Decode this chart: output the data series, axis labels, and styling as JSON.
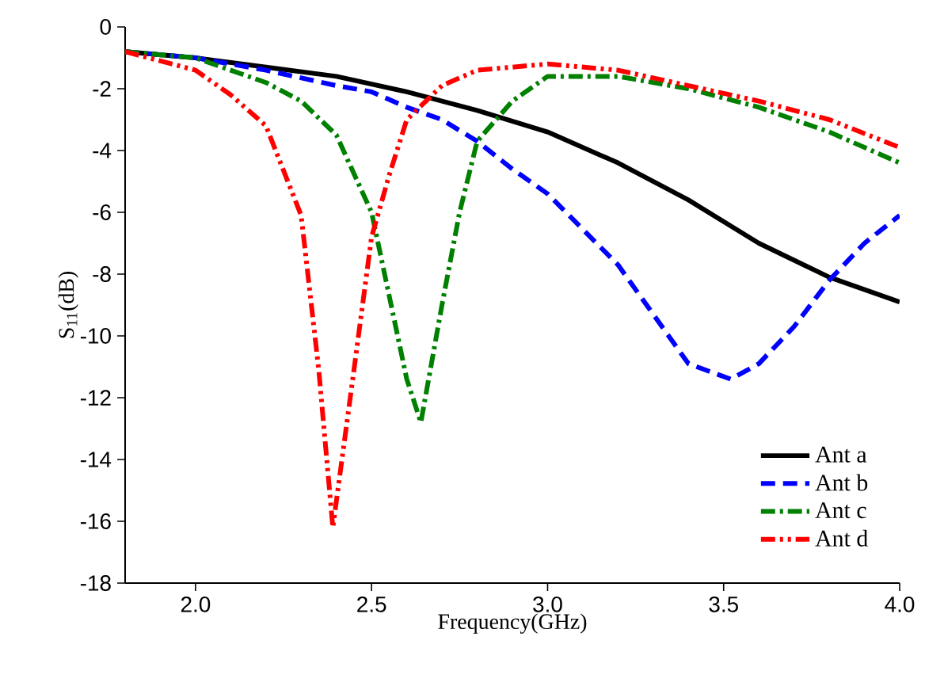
{
  "chart_data": {
    "type": "line",
    "xlabel": "Frequency(GHz)",
    "ylabel": "S$_{11}$(dB)",
    "xlim": [
      1.8,
      4.0
    ],
    "ylim": [
      -18,
      0
    ],
    "xticks": [
      {
        "value": 2.0,
        "label": "2.0"
      },
      {
        "value": 2.5,
        "label": "2.5"
      },
      {
        "value": 3.0,
        "label": "3.0"
      },
      {
        "value": 3.5,
        "label": "3.5"
      },
      {
        "value": 4.0,
        "label": "4.0"
      }
    ],
    "yticks": [
      -18,
      -16,
      -14,
      -12,
      -10,
      -8,
      -6,
      -4,
      -2,
      0
    ],
    "grid": false,
    "legend": "bottom right",
    "marker": "none",
    "series": [
      {
        "name": "Ant a",
        "color": "#000000",
        "line_style": "solid",
        "x": [
          1.8,
          2.0,
          2.2,
          2.4,
          2.6,
          2.8,
          3.0,
          3.2,
          3.4,
          3.5,
          3.6,
          3.8,
          4.0
        ],
        "values": [
          -0.8,
          -1.0,
          -1.3,
          -1.6,
          -2.1,
          -2.7,
          -3.4,
          -4.4,
          -5.6,
          -6.3,
          -7.0,
          -8.1,
          -8.9
        ]
      },
      {
        "name": "Ant b",
        "color": "#0000ff",
        "line_style": "dashed",
        "x": [
          1.8,
          2.0,
          2.2,
          2.4,
          2.5,
          2.6,
          2.7,
          2.8,
          2.9,
          3.0,
          3.2,
          3.4,
          3.52,
          3.6,
          3.7,
          3.8,
          3.9,
          4.0
        ],
        "values": [
          -0.8,
          -1.0,
          -1.4,
          -1.9,
          -2.1,
          -2.6,
          -3.0,
          -3.7,
          -4.6,
          -5.4,
          -7.7,
          -10.9,
          -11.4,
          -10.9,
          -9.7,
          -8.2,
          -7.0,
          -6.1
        ]
      },
      {
        "name": "Ant c",
        "color": "#008000",
        "line_style": "dashdot",
        "x": [
          1.8,
          2.0,
          2.2,
          2.3,
          2.4,
          2.5,
          2.55,
          2.6,
          2.64,
          2.7,
          2.75,
          2.8,
          2.9,
          3.0,
          3.2,
          3.4,
          3.6,
          3.8,
          4.0
        ],
        "values": [
          -0.8,
          -1.0,
          -1.8,
          -2.4,
          -3.5,
          -6.0,
          -8.7,
          -11.4,
          -12.8,
          -9.0,
          -6.0,
          -3.7,
          -2.4,
          -1.6,
          -1.6,
          -2.0,
          -2.6,
          -3.4,
          -4.4
        ]
      },
      {
        "name": "Ant d",
        "color": "#ff0000",
        "line_style": "dashdotdot",
        "x": [
          1.8,
          2.0,
          2.1,
          2.2,
          2.3,
          2.35,
          2.39,
          2.45,
          2.5,
          2.55,
          2.6,
          2.7,
          2.8,
          3.0,
          3.2,
          3.4,
          3.6,
          3.8,
          4.0
        ],
        "values": [
          -0.8,
          -1.4,
          -2.2,
          -3.2,
          -6.1,
          -11.1,
          -16.2,
          -11.1,
          -6.8,
          -4.8,
          -3.0,
          -1.9,
          -1.4,
          -1.2,
          -1.4,
          -1.9,
          -2.4,
          -3.0,
          -3.9
        ]
      }
    ]
  }
}
